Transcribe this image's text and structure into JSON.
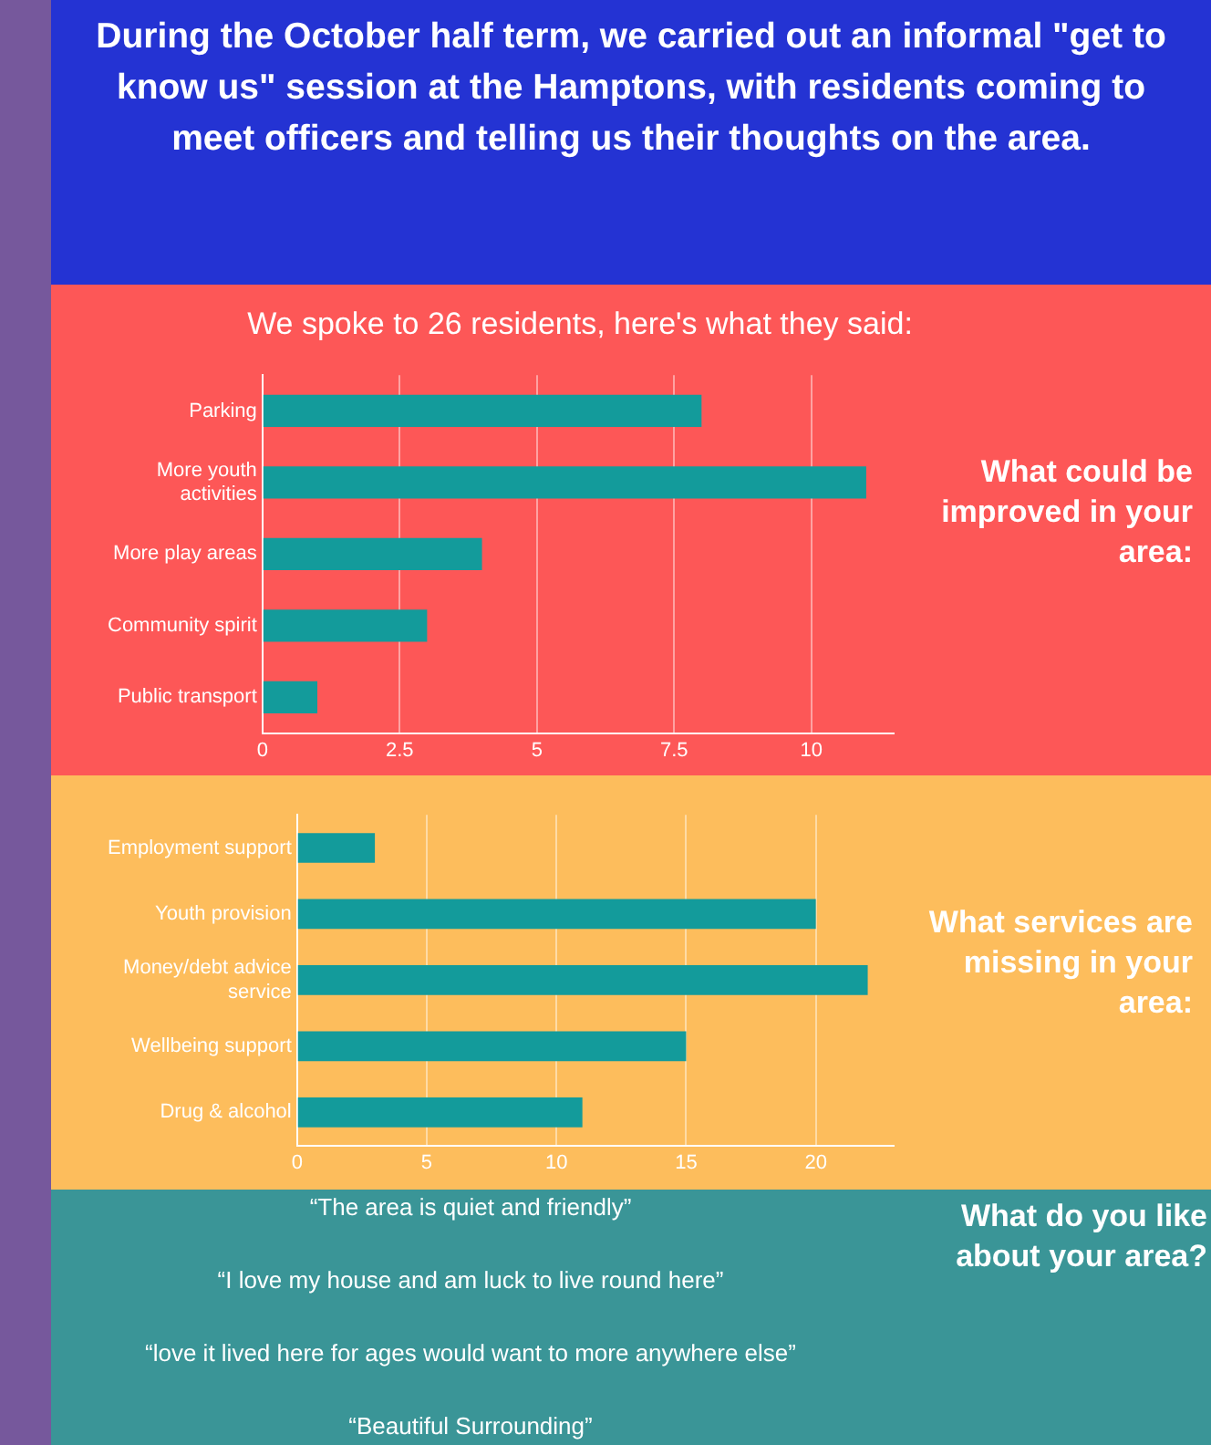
{
  "chart_data": [
    {
      "type": "bar",
      "title": "During the October half term, we carried out an informal \"get to know us\" session at the Hamptons, with residents coming to meet officers and telling us their thoughts on the area.",
      "subtitle": "We spoke to 26 residents, here's what they said:",
      "annotations": [
        "What could be improved in your area:"
      ],
      "orientation": "horizontal",
      "categories": [
        "Parking",
        "More youth activities",
        "More play areas",
        "Community spirit",
        "Public transport"
      ],
      "series": [
        {
          "color": "#139b9b",
          "values": [
            8,
            11,
            4,
            3,
            1
          ]
        }
      ],
      "xlim": [
        0,
        11.5
      ],
      "xticks": [
        0,
        2.5,
        5,
        7.5,
        10
      ],
      "grid": "x"
    },
    {
      "type": "bar",
      "annotations": [
        "What services are missing in your area:"
      ],
      "orientation": "horizontal",
      "categories": [
        "Employment support",
        "Youth provision",
        "Money/debt advice service",
        "Wellbeing support",
        "Drug & alcohol"
      ],
      "series": [
        {
          "color": "#139b9b",
          "values": [
            3,
            20,
            22,
            15,
            11
          ]
        }
      ],
      "xlim": [
        0,
        23
      ],
      "xticks": [
        0,
        5,
        10,
        15,
        20
      ],
      "grid": "x"
    },
    {
      "type": "other",
      "title": "What do you like about your area?",
      "annotations": [
        "“The area is quiet and friendly”",
        "“I love my house and am luck to live round here”",
        "“love it lived here for ages would want to more anywhere else”",
        "“Beautiful Surrounding”"
      ]
    }
  ]
}
